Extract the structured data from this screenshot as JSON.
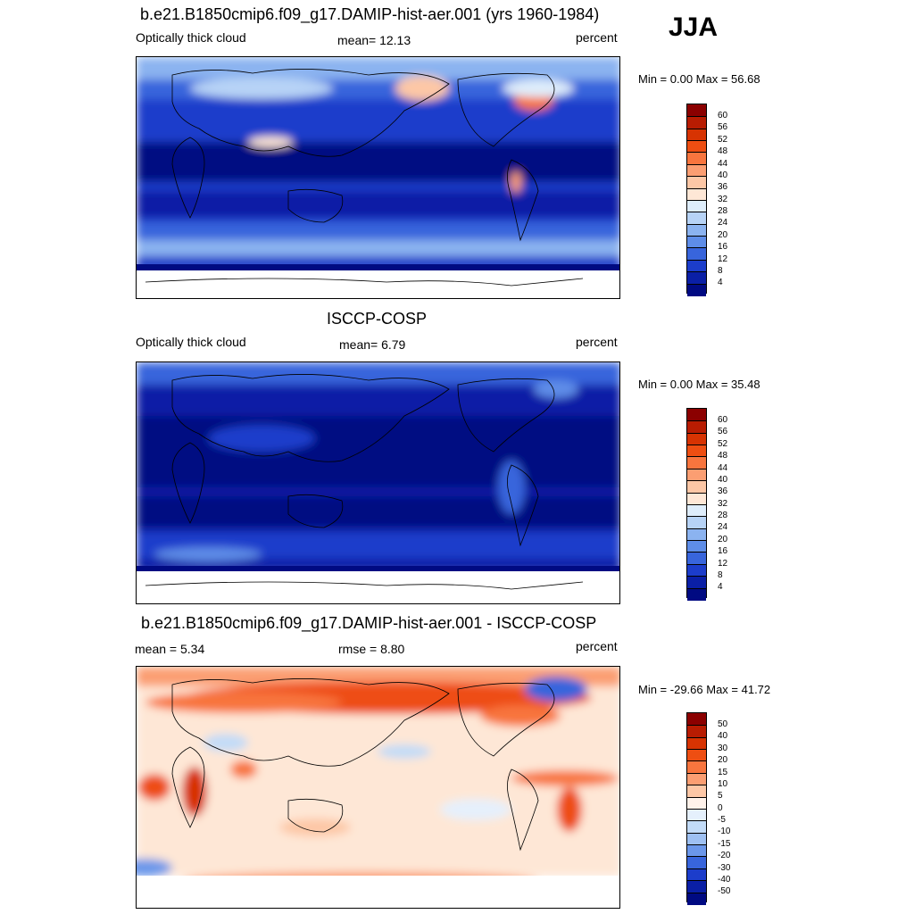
{
  "season": "JJA",
  "panels": [
    {
      "title": "b.e21.B1850cmip6.f09_g17.DAMIP-hist-aer.001 (yrs 1960-1984)",
      "left_label": "Optically thick cloud",
      "center_label": "mean=  12.13",
      "units": "percent",
      "minmax": "Min =   0.00 Max =  56.68"
    },
    {
      "title": "ISCCP-COSP",
      "left_label": "Optically thick cloud",
      "center_label": "mean=   6.79",
      "units": "percent",
      "minmax": "Min =   0.00 Max =  35.48"
    },
    {
      "title": "b.e21.B1850cmip6.f09_g17.DAMIP-hist-aer.001 - ISCCP-COSP",
      "left_label": "mean =   5.34",
      "center_label": "rmse =   8.80",
      "units": "percent",
      "minmax": "Min = -29.66 Max =  41.72"
    }
  ],
  "chart_data": [
    {
      "type": "heatmap",
      "title": "b.e21.B1850cmip6.f09_g17.DAMIP-hist-aer.001 (yrs 1960-1984)",
      "variable": "Optically thick cloud",
      "units": "percent",
      "mean": 12.13,
      "min": 0.0,
      "max": 56.68,
      "colorbar_levels": [
        4,
        8,
        12,
        16,
        20,
        24,
        28,
        32,
        36,
        40,
        44,
        48,
        52,
        56,
        60
      ],
      "colorbar_labels": [
        "60",
        "56",
        "52",
        "48",
        "44",
        "40",
        "36",
        "32",
        "28",
        "24",
        "20",
        "16",
        "12",
        "8",
        "4"
      ],
      "colorbar_colors": [
        "#8b0000",
        "#b81c02",
        "#d73302",
        "#ee4e12",
        "#f8753e",
        "#fb9e72",
        "#fdc7a6",
        "#fee7d6",
        "#deedfb",
        "#b7d3f6",
        "#8bb3f0",
        "#5e8de8",
        "#3865dc",
        "#1c3dcb",
        "#0a1fa6",
        "#000a82"
      ]
    },
    {
      "type": "heatmap",
      "title": "ISCCP-COSP",
      "variable": "Optically thick cloud",
      "units": "percent",
      "mean": 6.79,
      "min": 0.0,
      "max": 35.48,
      "colorbar_levels": [
        4,
        8,
        12,
        16,
        20,
        24,
        28,
        32,
        36,
        40,
        44,
        48,
        52,
        56,
        60
      ],
      "colorbar_labels": [
        "60",
        "56",
        "52",
        "48",
        "44",
        "40",
        "36",
        "32",
        "28",
        "24",
        "20",
        "16",
        "12",
        "8",
        "4"
      ],
      "colorbar_colors": [
        "#8b0000",
        "#b81c02",
        "#d73302",
        "#ee4e12",
        "#f8753e",
        "#fb9e72",
        "#fdc7a6",
        "#fee7d6",
        "#deedfb",
        "#b7d3f6",
        "#8bb3f0",
        "#5e8de8",
        "#3865dc",
        "#1c3dcb",
        "#0a1fa6",
        "#000a82"
      ]
    },
    {
      "type": "heatmap",
      "title": "b.e21.B1850cmip6.f09_g17.DAMIP-hist-aer.001 - ISCCP-COSP",
      "units": "percent",
      "mean": 5.34,
      "rmse": 8.8,
      "min": -29.66,
      "max": 41.72,
      "colorbar_levels": [
        -50,
        -40,
        -30,
        -20,
        -15,
        -10,
        -5,
        0,
        5,
        10,
        15,
        20,
        30,
        40,
        50
      ],
      "colorbar_labels": [
        "50",
        "40",
        "30",
        "20",
        "15",
        "10",
        "5",
        "0",
        "-5",
        "-10",
        "-15",
        "-20",
        "-30",
        "-40",
        "-50"
      ],
      "colorbar_colors": [
        "#8b0000",
        "#b81c02",
        "#d73302",
        "#ee4e12",
        "#f8753e",
        "#fb9e72",
        "#fdc7a6",
        "#fff2ea",
        "#e5f0fc",
        "#c2dbf7",
        "#9ec0f2",
        "#6b97ea",
        "#3865dc",
        "#1c3dcb",
        "#0a1fa6",
        "#000a82"
      ]
    }
  ]
}
